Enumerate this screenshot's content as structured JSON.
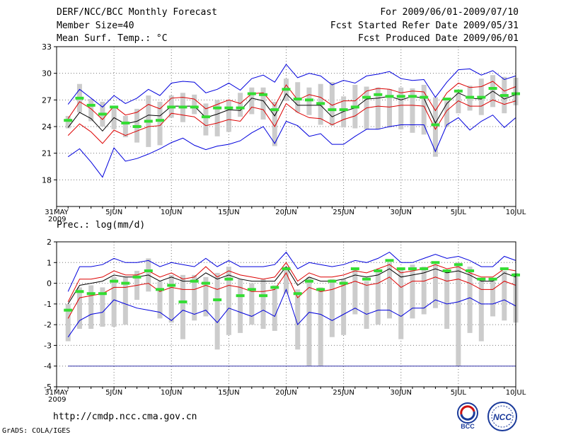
{
  "header": {
    "title": "DERF/NCC/BCC Monthly Forecast",
    "member_size": "Member Size=40",
    "variable": "Mean Surf. Temp.: °C",
    "forecast_period": "For 2009/06/01-2009/07/10",
    "started": "Fcst Started Refer Date 2009/05/31",
    "produced": "Fcst Produced Date 2009/06/01"
  },
  "footer": {
    "url": "http://cmdp.ncc.cma.gov.cn",
    "credit": "GrADS: COLA/IGES",
    "logo_bcc": "BCC",
    "logo_ncc": "NCC"
  },
  "colors": {
    "ensemble_range": "#0000dd",
    "spread": "#dd0000",
    "mean": "#000000",
    "green_marker": "#33dd33",
    "box": "#cccccc"
  },
  "chart_data": [
    {
      "type": "line",
      "title": "Mean Surf. Temp.: °C",
      "ylim": [
        15,
        33
      ],
      "yticks": [
        18,
        21,
        24,
        27,
        30,
        33
      ],
      "x_tick_labels": [
        {
          "day": 0,
          "label": "31MAY"
        },
        {
          "day": 5,
          "label": "5JUN"
        },
        {
          "day": 10,
          "label": "10JUN"
        },
        {
          "day": 15,
          "label": "15JUN"
        },
        {
          "day": 20,
          "label": "20JUN"
        },
        {
          "day": 25,
          "label": "25JUN"
        },
        {
          "day": 30,
          "label": "30JUN"
        },
        {
          "day": 35,
          "label": "5JUL"
        },
        {
          "day": 40,
          "label": "10JUL"
        }
      ],
      "year_label": "2009",
      "x_days": [
        1,
        2,
        3,
        4,
        5,
        6,
        7,
        8,
        9,
        10,
        11,
        12,
        13,
        14,
        15,
        16,
        17,
        18,
        19,
        20,
        21,
        22,
        23,
        24,
        25,
        26,
        27,
        28,
        29,
        30,
        31,
        32,
        33,
        34,
        35,
        36,
        37,
        38,
        39,
        40
      ],
      "series": [
        {
          "name": "max",
          "values": [
            26.5,
            28.2,
            27.2,
            26.2,
            27.5,
            26.6,
            27.2,
            28.2,
            27.5,
            28.9,
            29.1,
            29.0,
            27.8,
            28.2,
            28.9,
            28.1,
            29.4,
            29.8,
            29.0,
            31.0,
            29.5,
            30.0,
            29.7,
            28.7,
            29.2,
            28.9,
            29.7,
            29.9,
            30.2,
            29.4,
            29.2,
            29.3,
            27.3,
            29.0,
            30.4,
            30.5,
            29.8,
            30.3,
            29.3,
            29.7
          ]
        },
        {
          "name": "upper",
          "values": [
            24.9,
            26.8,
            26.0,
            24.8,
            26.3,
            25.3,
            25.6,
            26.5,
            26.0,
            27.2,
            27.3,
            27.1,
            26.0,
            26.5,
            27.0,
            26.6,
            27.7,
            27.8,
            26.3,
            28.7,
            27.0,
            27.6,
            27.3,
            26.4,
            26.9,
            26.9,
            28.0,
            28.3,
            28.2,
            27.8,
            28.0,
            27.9,
            25.8,
            27.8,
            28.9,
            28.4,
            28.5,
            29.1,
            28.0,
            28.5
          ]
        },
        {
          "name": "mean",
          "values": [
            23.9,
            25.6,
            24.9,
            23.5,
            25.0,
            24.3,
            24.6,
            25.3,
            25.2,
            26.3,
            26.3,
            26.3,
            25.0,
            25.4,
            25.9,
            25.8,
            27.2,
            26.9,
            25.2,
            27.7,
            26.4,
            26.4,
            26.4,
            25.1,
            25.7,
            26.1,
            27.1,
            27.2,
            27.4,
            27.0,
            27.4,
            27.2,
            24.4,
            26.6,
            27.8,
            27.2,
            27.1,
            28.0,
            27.1,
            27.6
          ]
        },
        {
          "name": "lower",
          "values": [
            23.0,
            24.3,
            23.4,
            22.1,
            23.6,
            23.0,
            23.5,
            24.0,
            24.1,
            25.5,
            25.3,
            25.1,
            24.1,
            24.4,
            24.8,
            24.6,
            26.2,
            25.9,
            24.0,
            26.6,
            25.6,
            25.0,
            24.9,
            24.2,
            24.8,
            25.2,
            26.1,
            26.3,
            26.2,
            26.4,
            26.4,
            26.3,
            23.7,
            25.8,
            26.9,
            26.3,
            26.3,
            27.0,
            26.5,
            26.9
          ]
        },
        {
          "name": "min",
          "values": [
            20.6,
            21.5,
            20.0,
            18.3,
            21.6,
            20.1,
            20.4,
            20.9,
            21.5,
            22.2,
            22.7,
            21.9,
            21.4,
            21.8,
            22.0,
            22.4,
            23.3,
            24.0,
            22.1,
            24.6,
            24.1,
            22.9,
            23.2,
            22.0,
            22.0,
            22.9,
            23.7,
            23.7,
            24.0,
            24.2,
            24.2,
            24.2,
            21.2,
            24.2,
            25.0,
            23.6,
            24.6,
            25.3,
            23.9,
            25.0
          ]
        },
        {
          "name": "green",
          "values": [
            24.7,
            27.2,
            26.4,
            25.4,
            26.2,
            24.4,
            24.0,
            24.6,
            24.7,
            26.2,
            26.2,
            26.2,
            25.1,
            26.1,
            26.1,
            26.1,
            27.7,
            27.6,
            25.9,
            28.2,
            27.1,
            27.0,
            26.6,
            25.9,
            25.9,
            26.2,
            27.3,
            27.6,
            27.4,
            27.4,
            27.4,
            27.3,
            24.2,
            27.1,
            28.0,
            27.3,
            27.3,
            28.3,
            27.5,
            27.7
          ]
        }
      ],
      "boxes": [
        [
          23.8,
          25.2
        ],
        [
          25.6,
          28.8
        ],
        [
          24.6,
          27.1
        ],
        [
          24.0,
          26.8
        ],
        [
          23.7,
          26.2
        ],
        [
          22.8,
          25.2
        ],
        [
          22.2,
          26.0
        ],
        [
          21.7,
          27.5
        ],
        [
          21.9,
          26.8
        ],
        [
          25.0,
          27.5
        ],
        [
          24.5,
          27.8
        ],
        [
          25.4,
          27.6
        ],
        [
          23.0,
          26.6
        ],
        [
          22.9,
          27.0
        ],
        [
          23.4,
          26.9
        ],
        [
          25.1,
          27.8
        ],
        [
          25.4,
          28.4
        ],
        [
          24.8,
          28.4
        ],
        [
          21.8,
          26.8
        ],
        [
          26.9,
          29.4
        ],
        [
          25.6,
          29.0
        ],
        [
          25.3,
          28.4
        ],
        [
          24.2,
          28.8
        ],
        [
          24.1,
          29.0
        ],
        [
          23.9,
          27.4
        ],
        [
          23.8,
          28.7
        ],
        [
          23.7,
          28.5
        ],
        [
          23.7,
          28.4
        ],
        [
          23.9,
          28.2
        ],
        [
          23.7,
          28.4
        ],
        [
          23.3,
          28.3
        ],
        [
          23.1,
          28.7
        ],
        [
          20.6,
          27.3
        ],
        [
          24.0,
          26.9
        ],
        [
          25.5,
          27.8
        ],
        [
          25.8,
          28.6
        ],
        [
          25.3,
          29.4
        ],
        [
          26.2,
          29.8
        ],
        [
          25.5,
          29.6
        ],
        [
          26.4,
          29.5
        ]
      ]
    },
    {
      "type": "line",
      "title": "Prec.: log(mm/d)",
      "ylim": [
        -5,
        2
      ],
      "yticks": [
        -5,
        -4,
        -3,
        -2,
        -1,
        0,
        1,
        2
      ],
      "x_tick_labels": [
        {
          "day": 0,
          "label": "31MAY"
        },
        {
          "day": 5,
          "label": "5JUN"
        },
        {
          "day": 10,
          "label": "10JUN"
        },
        {
          "day": 15,
          "label": "15JUN"
        },
        {
          "day": 20,
          "label": "20JUN"
        },
        {
          "day": 25,
          "label": "25JUN"
        },
        {
          "day": 30,
          "label": "30JUN"
        },
        {
          "day": 35,
          "label": "5JUL"
        },
        {
          "day": 40,
          "label": "10JUL"
        }
      ],
      "year_label": "2009",
      "x_days": [
        1,
        2,
        3,
        4,
        5,
        6,
        7,
        8,
        9,
        10,
        11,
        12,
        13,
        14,
        15,
        16,
        17,
        18,
        19,
        20,
        21,
        22,
        23,
        24,
        25,
        26,
        27,
        28,
        29,
        30,
        31,
        32,
        33,
        34,
        35,
        36,
        37,
        38,
        39,
        40
      ],
      "series": [
        {
          "name": "max",
          "values": [
            -0.4,
            0.8,
            0.8,
            0.9,
            1.2,
            1.0,
            1.0,
            1.1,
            0.8,
            1.0,
            0.9,
            0.8,
            1.2,
            0.8,
            1.1,
            0.8,
            0.8,
            0.8,
            0.9,
            1.5,
            0.7,
            1.0,
            0.9,
            0.8,
            0.9,
            1.1,
            1.0,
            1.2,
            1.5,
            1.0,
            1.0,
            1.2,
            1.4,
            1.2,
            1.3,
            1.1,
            0.8,
            0.8,
            1.3,
            1.1
          ]
        },
        {
          "name": "upper",
          "values": [
            -0.9,
            0.2,
            0.2,
            0.3,
            0.6,
            0.4,
            0.4,
            0.6,
            0.3,
            0.5,
            0.2,
            0.3,
            0.8,
            0.3,
            0.6,
            0.4,
            0.3,
            0.2,
            0.3,
            1.0,
            0.1,
            0.5,
            0.3,
            0.3,
            0.4,
            0.6,
            0.5,
            0.7,
            0.9,
            0.5,
            0.6,
            0.7,
            0.9,
            0.7,
            0.8,
            0.5,
            0.3,
            0.3,
            0.7,
            0.6
          ]
        },
        {
          "name": "mean",
          "values": [
            -1.0,
            -0.1,
            0.0,
            0.1,
            0.4,
            0.3,
            0.3,
            0.4,
            0.1,
            0.3,
            0.1,
            0.1,
            0.5,
            0.2,
            0.4,
            0.2,
            0.1,
            0.1,
            0.1,
            0.8,
            -0.1,
            0.3,
            0.1,
            0.1,
            0.2,
            0.4,
            0.3,
            0.4,
            0.7,
            0.3,
            0.4,
            0.5,
            0.7,
            0.5,
            0.6,
            0.4,
            0.1,
            0.1,
            0.5,
            0.3
          ]
        },
        {
          "name": "lower",
          "values": [
            -1.7,
            -0.7,
            -0.6,
            -0.5,
            -0.2,
            -0.2,
            -0.1,
            0.0,
            -0.4,
            -0.2,
            -0.3,
            -0.3,
            -0.1,
            -0.3,
            -0.1,
            -0.2,
            -0.4,
            -0.4,
            -0.3,
            0.5,
            -0.7,
            -0.2,
            -0.4,
            -0.3,
            -0.1,
            0.1,
            -0.1,
            0.0,
            0.3,
            -0.2,
            0.1,
            0.1,
            0.3,
            0.1,
            0.2,
            0.0,
            -0.3,
            -0.3,
            0.1,
            -0.1
          ]
        },
        {
          "name": "min",
          "values": [
            -2.6,
            -1.8,
            -1.5,
            -1.4,
            -0.8,
            -1.0,
            -1.2,
            -1.3,
            -1.4,
            -1.8,
            -1.3,
            -1.5,
            -1.3,
            -1.9,
            -1.2,
            -1.4,
            -1.6,
            -1.3,
            -1.6,
            -0.3,
            -2.0,
            -1.4,
            -1.5,
            -1.8,
            -1.5,
            -1.2,
            -1.5,
            -1.3,
            -1.3,
            -1.6,
            -1.2,
            -1.2,
            -0.8,
            -1.0,
            -0.9,
            -0.7,
            -1.0,
            -1.0,
            -0.8,
            -1.1
          ]
        },
        {
          "name": "green",
          "values": [
            -1.3,
            -0.4,
            -0.5,
            -0.5,
            0.1,
            0.0,
            0.3,
            0.6,
            -0.3,
            -0.1,
            -0.9,
            0.1,
            0.0,
            -0.8,
            0.2,
            -0.6,
            -0.3,
            -0.6,
            -0.2,
            0.7,
            -0.5,
            0.1,
            -0.3,
            0.1,
            0.0,
            0.7,
            0.2,
            0.6,
            1.1,
            0.7,
            0.7,
            0.7,
            1.0,
            0.6,
            0.9,
            0.6,
            0.2,
            0.2,
            0.7,
            0.4
          ]
        }
      ],
      "boxes": [
        [
          -2.8,
          -1.0
        ],
        [
          -2.2,
          -0.2
        ],
        [
          -2.2,
          -0.1
        ],
        [
          -2.1,
          -0.2
        ],
        [
          -2.1,
          0.3
        ],
        [
          -2.0,
          0.3
        ],
        [
          -0.8,
          0.6
        ],
        [
          -0.4,
          1.2
        ],
        [
          -1.7,
          0.1
        ],
        [
          -1.9,
          0.4
        ],
        [
          -2.7,
          0.4
        ],
        [
          -1.8,
          0.4
        ],
        [
          -1.6,
          0.3
        ],
        [
          -3.2,
          0.5
        ],
        [
          -2.5,
          0.8
        ],
        [
          -2.4,
          0.2
        ],
        [
          -2.0,
          0.0
        ],
        [
          -2.2,
          0.2
        ],
        [
          -2.3,
          -0.1
        ],
        [
          -0.5,
          0.8
        ],
        [
          -3.2,
          -0.3
        ],
        [
          -4.0,
          0.3
        ],
        [
          -4.0,
          -0.2
        ],
        [
          -2.6,
          0.2
        ],
        [
          -2.5,
          0.2
        ],
        [
          -1.5,
          0.7
        ],
        [
          -2.2,
          0.1
        ],
        [
          -2.0,
          0.6
        ],
        [
          -1.7,
          1.0
        ],
        [
          -2.7,
          0.7
        ],
        [
          -1.7,
          0.9
        ],
        [
          -1.5,
          0.8
        ],
        [
          -1.2,
          0.9
        ],
        [
          -2.2,
          0.6
        ],
        [
          -4.0,
          1.0
        ],
        [
          -2.4,
          0.8
        ],
        [
          -2.8,
          0.2
        ],
        [
          -1.6,
          0.2
        ],
        [
          -1.8,
          0.6
        ],
        [
          -1.9,
          0.5
        ]
      ],
      "baseline": -4
    }
  ]
}
